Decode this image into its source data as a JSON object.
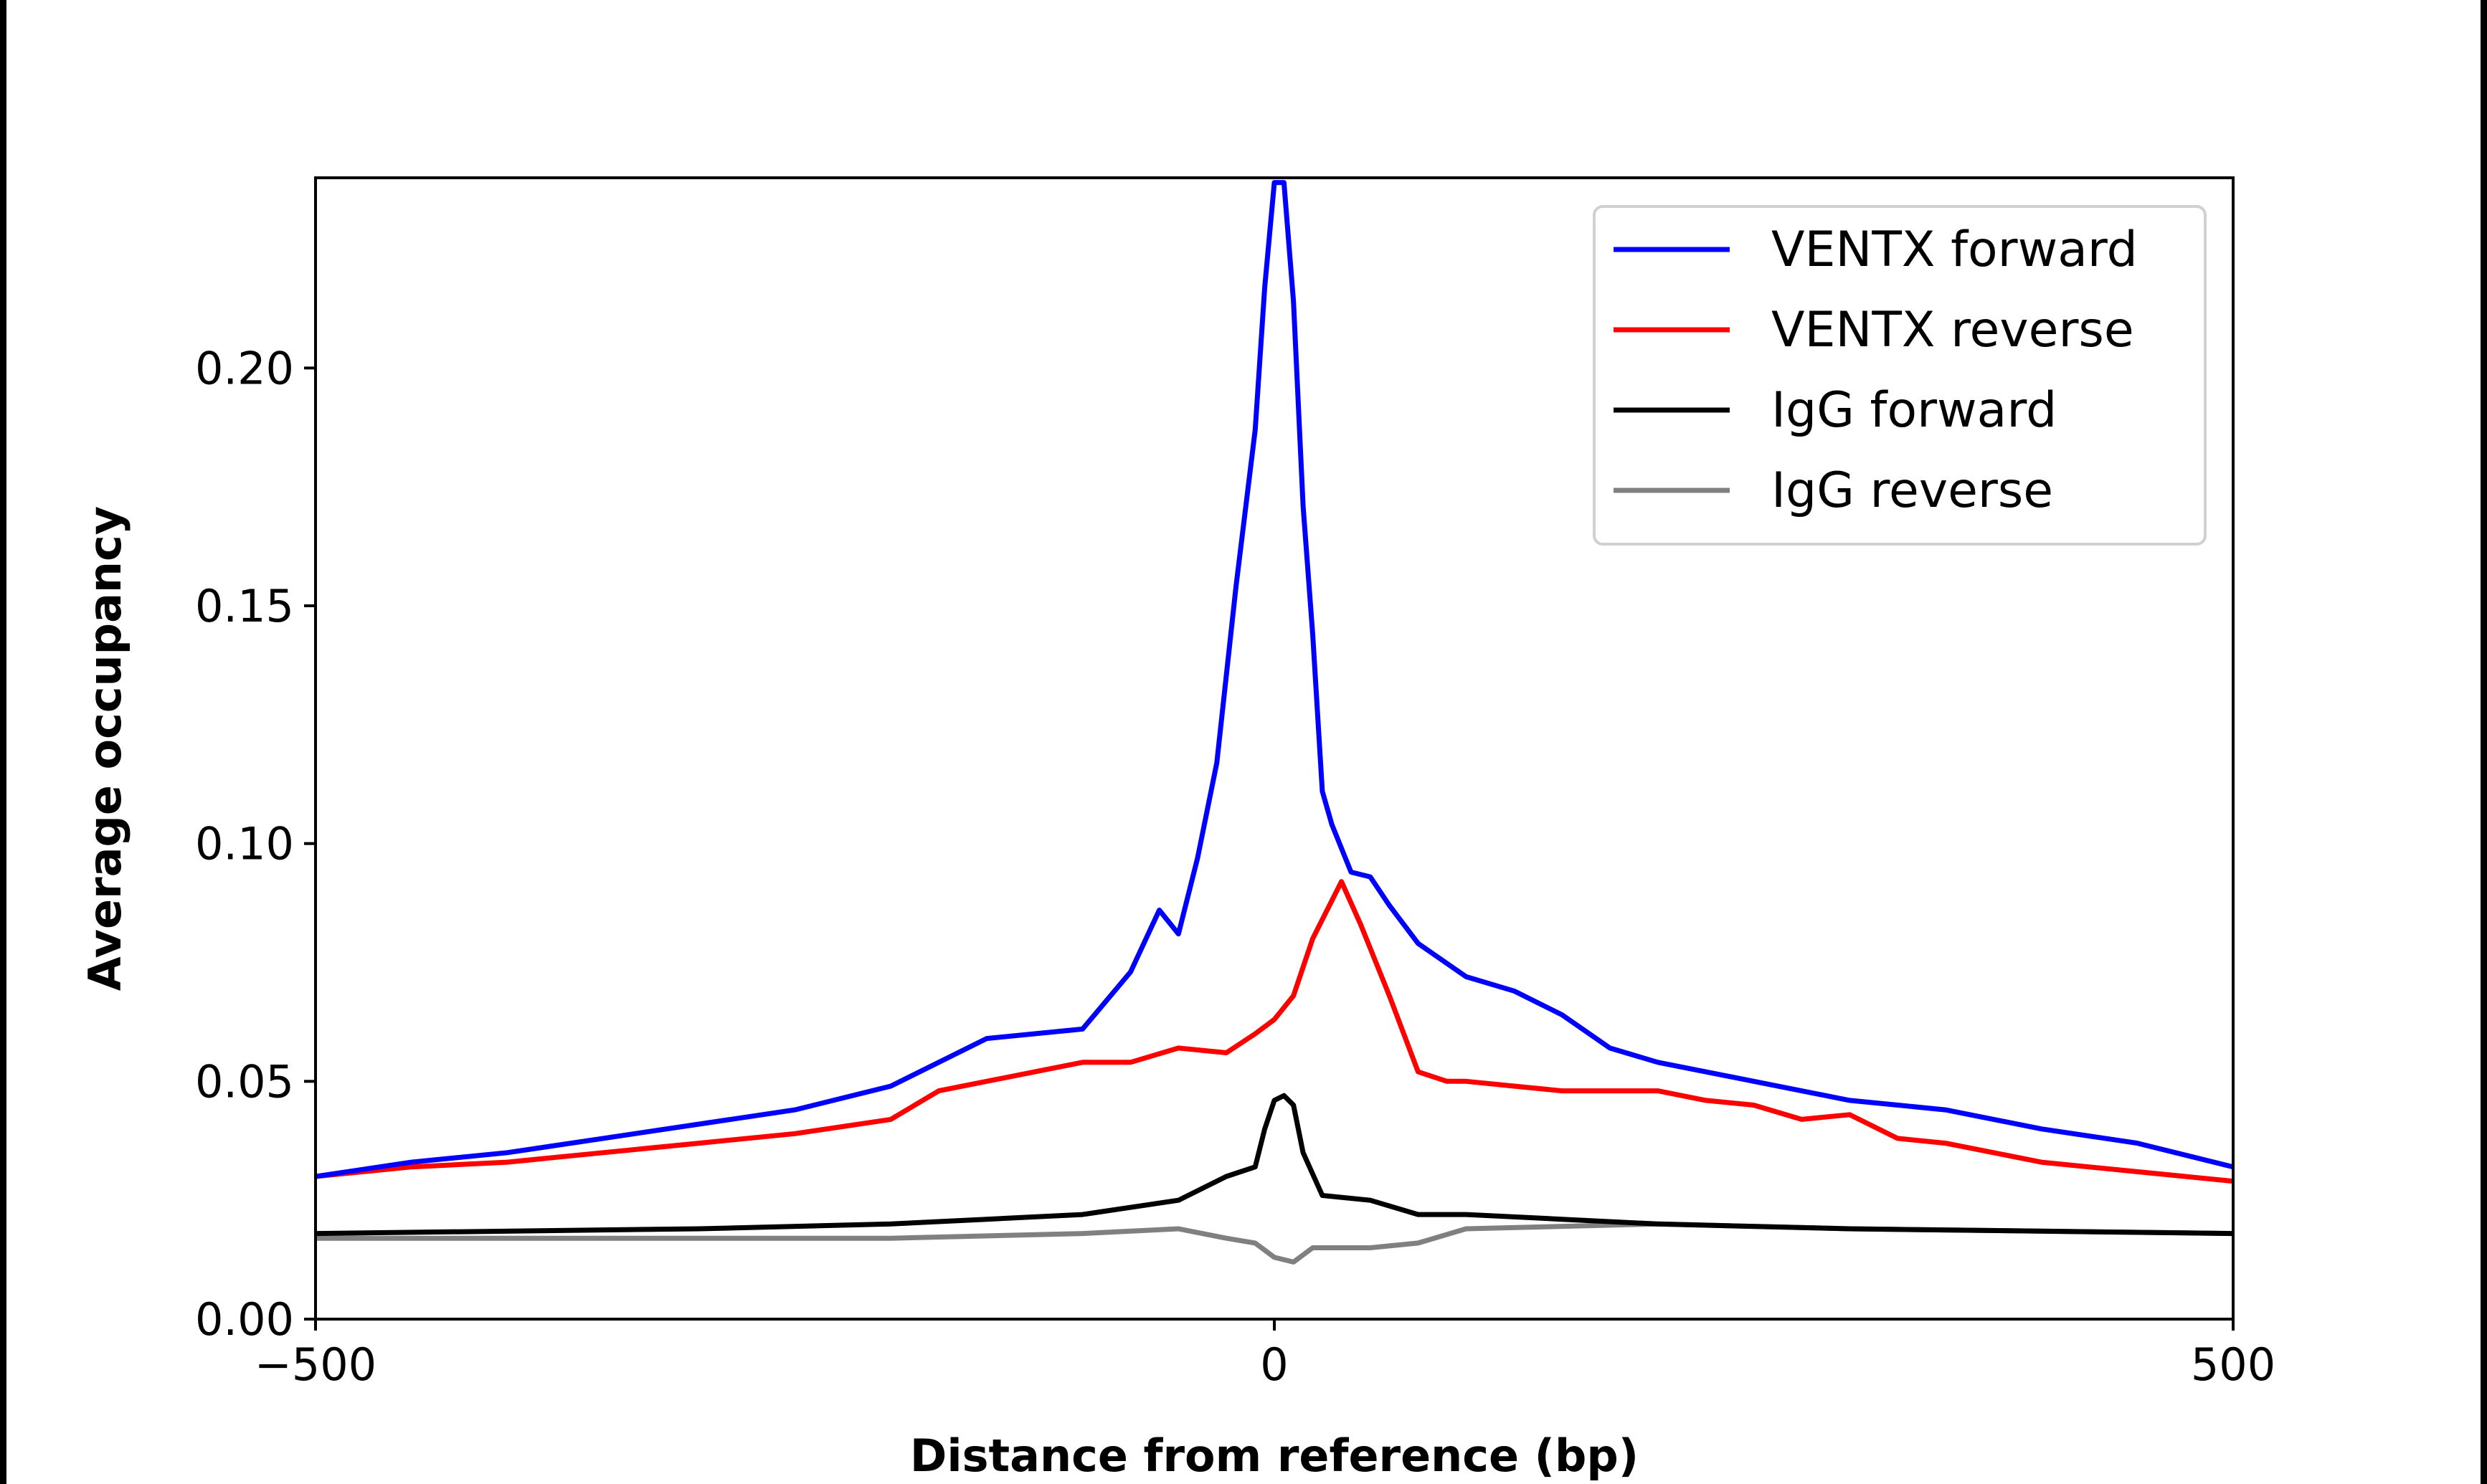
{
  "chart_data": {
    "type": "line",
    "xlabel": "Distance from reference (bp)",
    "ylabel": "Average occupancy",
    "xlim": [
      -500,
      500
    ],
    "ylim": [
      0,
      0.24
    ],
    "xticks": [
      -500,
      0,
      500
    ],
    "xtick_labels": [
      "−500",
      "0",
      "500"
    ],
    "yticks": [
      0,
      0.05,
      0.1,
      0.15,
      0.2
    ],
    "ytick_labels": [
      "0.00",
      "0.05",
      "0.10",
      "0.15",
      "0.20"
    ],
    "grid": false,
    "legend_position": "top-right",
    "series": [
      {
        "name": "VENTX forward",
        "color": "#0000ff",
        "x": [
          -500,
          -450,
          -400,
          -350,
          -300,
          -250,
          -200,
          -150,
          -100,
          -75,
          -60,
          -50,
          -40,
          -30,
          -20,
          -10,
          -5,
          0,
          5,
          10,
          15,
          20,
          25,
          30,
          40,
          50,
          60,
          75,
          100,
          125,
          150,
          175,
          200,
          250,
          300,
          350,
          400,
          450,
          500
        ],
        "y": [
          0.03,
          0.033,
          0.035,
          0.038,
          0.041,
          0.044,
          0.049,
          0.059,
          0.061,
          0.073,
          0.086,
          0.081,
          0.097,
          0.117,
          0.154,
          0.187,
          0.217,
          0.239,
          0.239,
          0.214,
          0.171,
          0.144,
          0.111,
          0.104,
          0.094,
          0.093,
          0.087,
          0.079,
          0.072,
          0.069,
          0.064,
          0.057,
          0.054,
          0.05,
          0.046,
          0.044,
          0.04,
          0.037,
          0.032
        ]
      },
      {
        "name": "VENTX reverse",
        "color": "#ff0000",
        "x": [
          -500,
          -450,
          -400,
          -350,
          -300,
          -250,
          -200,
          -175,
          -150,
          -125,
          -100,
          -75,
          -50,
          -25,
          -10,
          0,
          10,
          20,
          30,
          35,
          45,
          60,
          75,
          90,
          100,
          125,
          150,
          200,
          225,
          250,
          275,
          300,
          325,
          350,
          375,
          400,
          450,
          500
        ],
        "y": [
          0.03,
          0.032,
          0.033,
          0.035,
          0.037,
          0.039,
          0.042,
          0.048,
          0.05,
          0.052,
          0.054,
          0.054,
          0.057,
          0.056,
          0.06,
          0.063,
          0.068,
          0.08,
          0.088,
          0.092,
          0.083,
          0.068,
          0.052,
          0.05,
          0.05,
          0.049,
          0.048,
          0.048,
          0.046,
          0.045,
          0.042,
          0.043,
          0.038,
          0.037,
          0.035,
          0.033,
          0.031,
          0.029
        ]
      },
      {
        "name": "IgG forward",
        "color": "#000000",
        "x": [
          -500,
          -300,
          -200,
          -150,
          -100,
          -50,
          -25,
          -10,
          -5,
          0,
          5,
          10,
          15,
          25,
          50,
          75,
          100,
          150,
          200,
          300,
          500
        ],
        "y": [
          0.018,
          0.019,
          0.02,
          0.021,
          0.022,
          0.025,
          0.03,
          0.032,
          0.04,
          0.046,
          0.047,
          0.045,
          0.035,
          0.026,
          0.025,
          0.022,
          0.022,
          0.021,
          0.02,
          0.019,
          0.018
        ]
      },
      {
        "name": "IgG reverse",
        "color": "#808080",
        "x": [
          -500,
          -200,
          -100,
          -50,
          -25,
          -10,
          0,
          10,
          20,
          50,
          75,
          100,
          200,
          300,
          500
        ],
        "y": [
          0.017,
          0.017,
          0.018,
          0.019,
          0.017,
          0.016,
          0.013,
          0.012,
          0.015,
          0.015,
          0.016,
          0.019,
          0.02,
          0.019,
          0.018
        ]
      }
    ]
  }
}
